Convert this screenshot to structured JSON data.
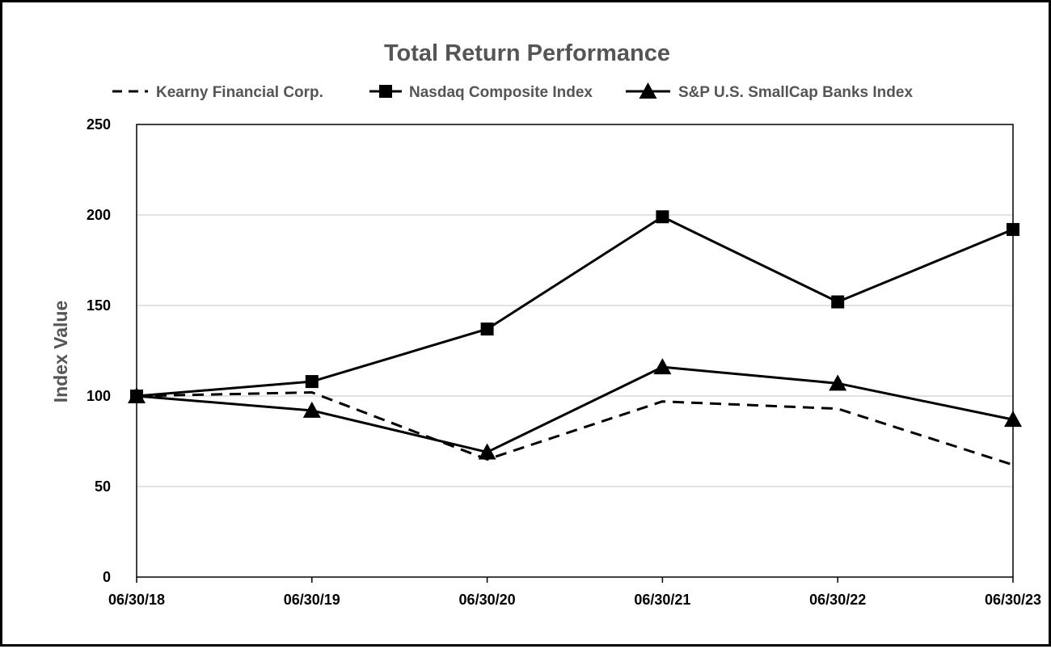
{
  "chart_data": {
    "type": "line",
    "title": "Total Return Performance",
    "xlabel": "",
    "ylabel": "Index Value",
    "categories": [
      "06/30/18",
      "06/30/19",
      "06/30/20",
      "06/30/21",
      "06/30/22",
      "06/30/23"
    ],
    "ylim": [
      0,
      250
    ],
    "yticks": [
      0,
      50,
      100,
      150,
      200,
      250
    ],
    "grid": "horizontal",
    "legend_position": "top",
    "series": [
      {
        "name": "Kearny Financial Corp.",
        "style": "dashed",
        "marker": "none",
        "color": "#000000",
        "values": [
          100,
          102,
          65,
          97,
          93,
          62
        ]
      },
      {
        "name": "Nasdaq Composite Index",
        "style": "solid",
        "marker": "square",
        "color": "#000000",
        "values": [
          100,
          108,
          137,
          199,
          152,
          192
        ]
      },
      {
        "name": "S&P U.S. SmallCap Banks Index",
        "style": "solid",
        "marker": "triangle",
        "color": "#000000",
        "values": [
          100,
          92,
          69,
          116,
          107,
          87
        ]
      }
    ]
  }
}
